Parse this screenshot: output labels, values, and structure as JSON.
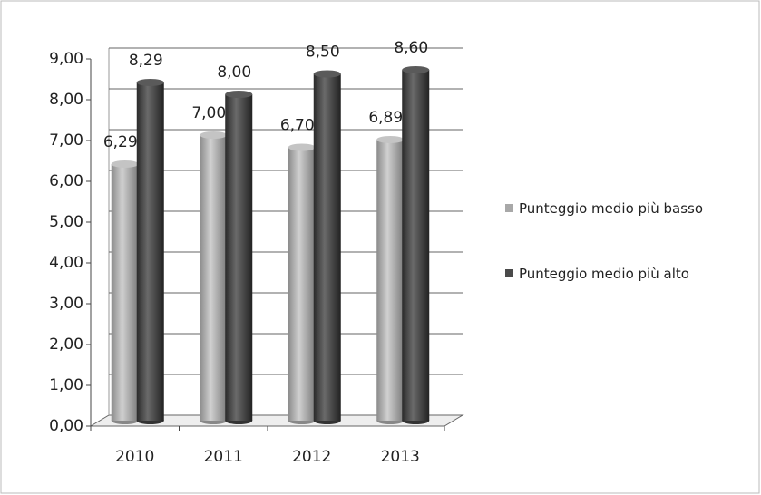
{
  "chart_data": {
    "type": "bar",
    "categories": [
      "2010",
      "2011",
      "2012",
      "2013"
    ],
    "series": [
      {
        "name": "Punteggio medio più basso",
        "color": "#a8a8a8",
        "values": [
          6.29,
          7.0,
          6.7,
          6.89
        ],
        "value_labels": [
          "6,29",
          "7,00",
          "6,70",
          "6,89"
        ]
      },
      {
        "name": "Punteggio medio più alto",
        "color": "#4a4a4a",
        "values": [
          8.29,
          8.0,
          8.5,
          8.6
        ],
        "value_labels": [
          "8,29",
          "8,00",
          "8,50",
          "8,60"
        ]
      }
    ],
    "ylim": [
      0,
      9
    ],
    "yticks": [
      {
        "value": 0,
        "label": "0,00"
      },
      {
        "value": 1,
        "label": "1,00"
      },
      {
        "value": 2,
        "label": "2,00"
      },
      {
        "value": 3,
        "label": "3,00"
      },
      {
        "value": 4,
        "label": "4,00"
      },
      {
        "value": 5,
        "label": "5,00"
      },
      {
        "value": 6,
        "label": "6,00"
      },
      {
        "value": 7,
        "label": "7,00"
      },
      {
        "value": 8,
        "label": "8,00"
      },
      {
        "value": 9,
        "label": "9,00"
      }
    ],
    "grid": true,
    "legend": "right"
  }
}
